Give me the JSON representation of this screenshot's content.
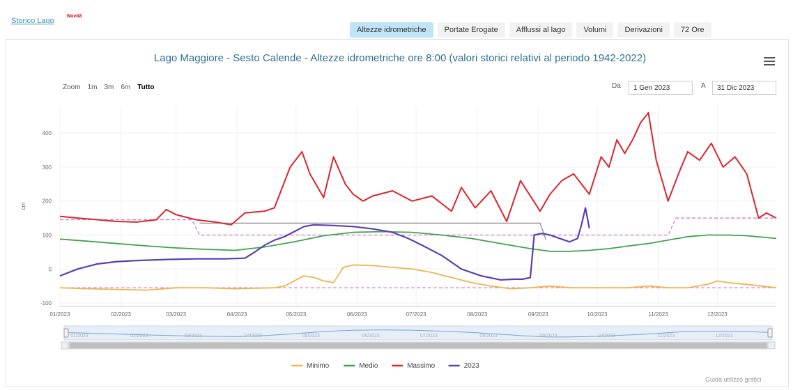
{
  "header": {
    "storico_link": "Storico Lago",
    "badge": "Novità"
  },
  "tabs": [
    {
      "label": "Altezze idrometriche",
      "active": true
    },
    {
      "label": "Portate Erogate",
      "active": false
    },
    {
      "label": "Afflussi al lago",
      "active": false
    },
    {
      "label": "Volumi",
      "active": false
    },
    {
      "label": "Derivazioni",
      "active": false
    },
    {
      "label": "72 Ore",
      "active": false
    }
  ],
  "zoom": {
    "label": "Zoom",
    "options": [
      "1m",
      "3m",
      "6m",
      "Tutto"
    ],
    "selected": "Tutto"
  },
  "range": {
    "from_label": "Da",
    "from_value": "1 Gen 2023",
    "to_label": "A",
    "to_value": "31 Dic 2023"
  },
  "footer": {
    "guide_link": "Guida utilizzo grafici"
  },
  "colors": {
    "minimo": "#f0b54a",
    "medio": "#3fa34d",
    "massimo": "#d9252c",
    "y2023": "#5a3fb3",
    "limit": "#d76ad6",
    "threshold": "#888888"
  },
  "chart_data": {
    "type": "line",
    "title": "Lago Maggiore - Sesto Calende - Altezze idrometriche ore 8:00 (valori storici relativi al periodo 1942-2022)",
    "xlabel": "",
    "ylabel": "cm",
    "x_ticks": [
      "01/2023",
      "02/2023",
      "03/2023",
      "04/2023",
      "05/2023",
      "06/2023",
      "07/2023",
      "08/2023",
      "09/2023",
      "10/2023",
      "11/2023",
      "12/2023"
    ],
    "y_ticks": [
      -100,
      0,
      100,
      200,
      300,
      400
    ],
    "ylim": [
      -110,
      480
    ],
    "xlim_days": [
      1,
      365
    ],
    "legend": [
      "Minimo",
      "Medio",
      "Massimo",
      "2023"
    ],
    "legend_position": "bottom",
    "navigator_ticks": [
      "01/2023",
      "02/2023",
      "03/2023",
      "04/2023",
      "05/2023",
      "06/2023",
      "07/2023",
      "08/2023",
      "09/2023",
      "10/2023",
      "11/2023",
      "12/2023"
    ],
    "series": [
      {
        "name": "Minimo",
        "x": [
          1,
          15,
          30,
          45,
          60,
          75,
          90,
          110,
          115,
          120,
          125,
          130,
          135,
          140,
          145,
          150,
          160,
          170,
          180,
          190,
          200,
          210,
          220,
          230,
          240,
          250,
          260,
          270,
          280,
          290,
          300,
          310,
          320,
          330,
          335,
          340,
          350,
          365
        ],
        "y": [
          -55,
          -58,
          -60,
          -62,
          -55,
          -55,
          -58,
          -55,
          -50,
          -35,
          -20,
          -25,
          -35,
          -40,
          5,
          12,
          10,
          5,
          0,
          -10,
          -25,
          -40,
          -50,
          -58,
          -55,
          -50,
          -55,
          -55,
          -55,
          -55,
          -50,
          -55,
          -55,
          -45,
          -35,
          -40,
          -45,
          -55
        ]
      },
      {
        "name": "Medio",
        "x": [
          1,
          15,
          30,
          45,
          60,
          75,
          90,
          105,
          120,
          135,
          150,
          165,
          180,
          195,
          210,
          225,
          240,
          250,
          260,
          270,
          280,
          290,
          300,
          310,
          320,
          330,
          340,
          350,
          365
        ],
        "y": [
          88,
          82,
          75,
          68,
          62,
          58,
          55,
          65,
          80,
          98,
          108,
          110,
          108,
          100,
          90,
          75,
          60,
          52,
          52,
          55,
          60,
          68,
          75,
          85,
          95,
          100,
          100,
          98,
          90
        ]
      },
      {
        "name": "Massimo",
        "x": [
          1,
          10,
          20,
          30,
          40,
          50,
          55,
          60,
          70,
          80,
          88,
          95,
          105,
          110,
          118,
          124,
          128,
          135,
          140,
          146,
          150,
          155,
          160,
          170,
          180,
          190,
          200,
          205,
          212,
          220,
          228,
          235,
          245,
          250,
          256,
          262,
          270,
          276,
          280,
          284,
          288,
          292,
          296,
          300,
          304,
          310,
          316,
          320,
          326,
          332,
          338,
          344,
          350,
          356,
          360,
          365
        ],
        "y": [
          155,
          150,
          145,
          140,
          138,
          145,
          175,
          160,
          145,
          138,
          130,
          165,
          170,
          180,
          300,
          345,
          280,
          210,
          330,
          250,
          220,
          200,
          215,
          230,
          200,
          215,
          170,
          240,
          180,
          230,
          140,
          260,
          170,
          220,
          260,
          280,
          220,
          330,
          300,
          380,
          340,
          380,
          430,
          460,
          320,
          200,
          290,
          345,
          320,
          370,
          300,
          330,
          280,
          150,
          165,
          150
        ]
      },
      {
        "name": "2023",
        "x": [
          1,
          10,
          20,
          30,
          40,
          55,
          70,
          85,
          95,
          100,
          105,
          110,
          115,
          120,
          125,
          130,
          140,
          150,
          160,
          170,
          178,
          185,
          195,
          205,
          215,
          225,
          232,
          236,
          240,
          242,
          246,
          250,
          255,
          260,
          264,
          266,
          268,
          270
        ],
        "y": [
          -20,
          0,
          15,
          22,
          25,
          28,
          30,
          30,
          32,
          50,
          70,
          85,
          95,
          110,
          125,
          130,
          128,
          125,
          118,
          108,
          90,
          70,
          40,
          0,
          -20,
          -32,
          -30,
          -30,
          -25,
          100,
          105,
          100,
          90,
          80,
          90,
          130,
          180,
          120
        ]
      },
      {
        "name": "limite-inferiore",
        "x": [
          1,
          365
        ],
        "y": [
          -55,
          -55
        ]
      },
      {
        "name": "limite-regolazione",
        "x": [
          1,
          68,
          72,
          310,
          314,
          365
        ],
        "y": [
          145,
          145,
          100,
          100,
          150,
          150
        ]
      },
      {
        "name": "soglia",
        "x": [
          72,
          245,
          248
        ],
        "y": [
          135,
          135,
          85
        ]
      }
    ]
  }
}
